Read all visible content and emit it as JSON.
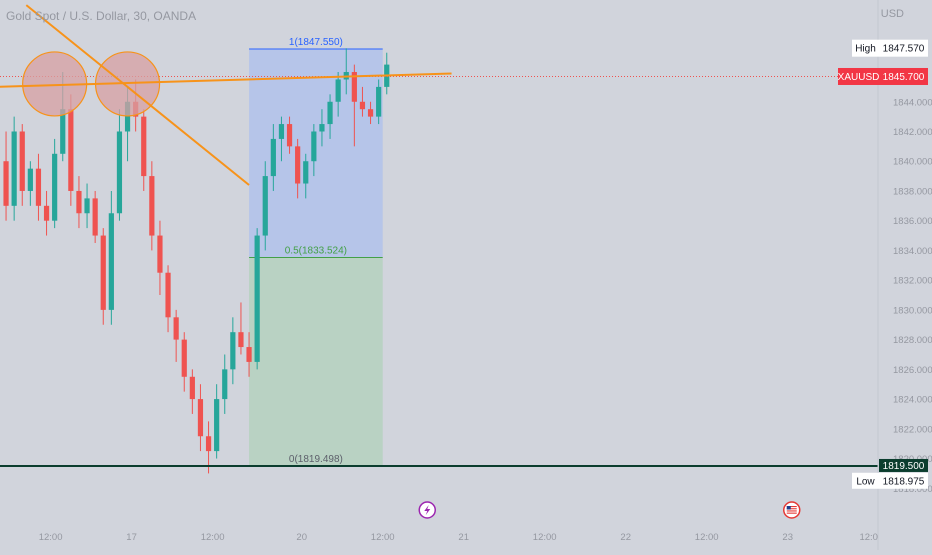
{
  "header": {
    "symbol_title": "Gold Spot / U.S. Dollar, 30, OANDA",
    "currency": "USD"
  },
  "colors": {
    "background": "#d1d4dc",
    "up_candle": "#26a69a",
    "down_candle": "#ef5350",
    "trendline": "#f7931a",
    "fib_top_zone": "#b2c3ea",
    "fib_bottom_zone": "#b6d1c0",
    "fib_top_line": "#2962ff",
    "fib_mid_line": "#43a047",
    "low_line": "#0b3d2e",
    "last_price_tag": "#f23645",
    "circle_fill": "#d7a0a3"
  },
  "chart_data": {
    "type": "candlestick",
    "symbol": "XAUUSD",
    "timeframe": "30",
    "ylim": [
      1816.0,
      1849.5
    ],
    "y_ticks": [
      1844,
      1842,
      1840,
      1838,
      1836,
      1834,
      1832,
      1830,
      1828,
      1826,
      1824,
      1822,
      1820,
      1818
    ],
    "y_tick_labels": [
      "1844.000",
      "1842.000",
      "1840.000",
      "1838.000",
      "1836.000",
      "1834.000",
      "1832.000",
      "1830.000",
      "1828.000",
      "1826.000",
      "1824.000",
      "1822.000",
      "1820.000",
      "1818.000"
    ],
    "x_tick_labels": [
      "12:00",
      "17",
      "12:00",
      "20",
      "12:00",
      "21",
      "12:00",
      "22",
      "12:00",
      "23",
      "12:0"
    ],
    "x_tick_bars": [
      6,
      16,
      26,
      37,
      47,
      57,
      67,
      77,
      87,
      97,
      107
    ],
    "price_labels": {
      "high_label": "High",
      "high_value": "1847.570",
      "last_symbol": "XAUUSD",
      "last_value": "1845.700",
      "low_label": "Low",
      "low_value": "1818.975",
      "support_value": "1819.500"
    },
    "fibonacci": {
      "levels": [
        {
          "label": "1(1847.550)",
          "price": 1847.55
        },
        {
          "label": "0.5(1833.524)",
          "price": 1833.524
        },
        {
          "label": "0(1819.498)",
          "price": 1819.498
        }
      ],
      "start_bar": 30.5,
      "end_bar": 47
    },
    "trendlines": [
      {
        "from": [
          -1,
          1845.0
        ],
        "to": [
          55.5,
          1845.9
        ]
      },
      {
        "from": [
          3,
          1850.5
        ],
        "to": [
          30.5,
          1838.4
        ]
      }
    ],
    "highlight_circles": [
      {
        "bar": 6.5,
        "price": 1845.2
      },
      {
        "bar": 15.5,
        "price": 1845.2
      }
    ],
    "support_price": 1819.5,
    "last_price": 1845.7,
    "event_markers": [
      {
        "bar": 52.5,
        "icon": "lightning-icon"
      },
      {
        "bar": 97.5,
        "icon": "us-flag-icon"
      }
    ],
    "candles_ohlc": [
      [
        1840.0,
        1842.0,
        1836.0,
        1837.0
      ],
      [
        1837.0,
        1843.0,
        1836.0,
        1842.0
      ],
      [
        1842.0,
        1842.5,
        1837.0,
        1838.0
      ],
      [
        1838.0,
        1840.0,
        1837.0,
        1839.5
      ],
      [
        1839.5,
        1840.5,
        1836.0,
        1837.0
      ],
      [
        1837.0,
        1838.0,
        1835.0,
        1836.0
      ],
      [
        1836.0,
        1841.5,
        1835.5,
        1840.5
      ],
      [
        1840.5,
        1846.0,
        1840.0,
        1843.5
      ],
      [
        1843.5,
        1844.5,
        1837.0,
        1838.0
      ],
      [
        1838.0,
        1839.0,
        1835.5,
        1836.5
      ],
      [
        1836.5,
        1838.5,
        1835.5,
        1837.5
      ],
      [
        1837.5,
        1838.0,
        1834.5,
        1835.0
      ],
      [
        1835.0,
        1835.5,
        1829.0,
        1830.0
      ],
      [
        1830.0,
        1838.0,
        1829.0,
        1836.5
      ],
      [
        1836.5,
        1843.5,
        1836.0,
        1842.0
      ],
      [
        1842.0,
        1845.0,
        1840.0,
        1844.0
      ],
      [
        1844.0,
        1845.5,
        1842.0,
        1843.0
      ],
      [
        1843.0,
        1843.5,
        1838.0,
        1839.0
      ],
      [
        1839.0,
        1840.0,
        1834.0,
        1835.0
      ],
      [
        1835.0,
        1836.0,
        1831.0,
        1832.5
      ],
      [
        1832.5,
        1833.0,
        1828.5,
        1829.5
      ],
      [
        1829.5,
        1830.0,
        1826.5,
        1828.0
      ],
      [
        1828.0,
        1828.5,
        1824.5,
        1825.5
      ],
      [
        1825.5,
        1826.0,
        1823.0,
        1824.0
      ],
      [
        1824.0,
        1825.0,
        1820.5,
        1821.5
      ],
      [
        1821.5,
        1822.5,
        1819.0,
        1820.5
      ],
      [
        1820.5,
        1825.0,
        1820.0,
        1824.0
      ],
      [
        1824.0,
        1827.0,
        1823.0,
        1826.0
      ],
      [
        1826.0,
        1829.5,
        1825.0,
        1828.5
      ],
      [
        1828.5,
        1830.5,
        1827.0,
        1827.5
      ],
      [
        1827.5,
        1828.5,
        1825.5,
        1826.5
      ],
      [
        1826.5,
        1835.5,
        1826.0,
        1835.0
      ],
      [
        1835.0,
        1840.0,
        1834.0,
        1839.0
      ],
      [
        1839.0,
        1842.5,
        1838.0,
        1841.5
      ],
      [
        1841.5,
        1843.0,
        1840.0,
        1842.5
      ],
      [
        1842.5,
        1843.0,
        1840.5,
        1841.0
      ],
      [
        1841.0,
        1841.5,
        1837.5,
        1838.5
      ],
      [
        1838.5,
        1840.5,
        1837.5,
        1840.0
      ],
      [
        1840.0,
        1842.5,
        1839.0,
        1842.0
      ],
      [
        1842.0,
        1843.5,
        1841.0,
        1842.5
      ],
      [
        1842.5,
        1844.5,
        1841.5,
        1844.0
      ],
      [
        1844.0,
        1846.0,
        1843.0,
        1845.5
      ],
      [
        1845.5,
        1847.6,
        1844.5,
        1846.0
      ],
      [
        1846.0,
        1846.5,
        1841.0,
        1844.0
      ],
      [
        1844.0,
        1845.0,
        1843.0,
        1843.5
      ],
      [
        1843.5,
        1844.0,
        1842.5,
        1843.0
      ],
      [
        1843.0,
        1845.5,
        1842.5,
        1845.0
      ],
      [
        1845.0,
        1847.3,
        1844.5,
        1846.5
      ]
    ]
  }
}
